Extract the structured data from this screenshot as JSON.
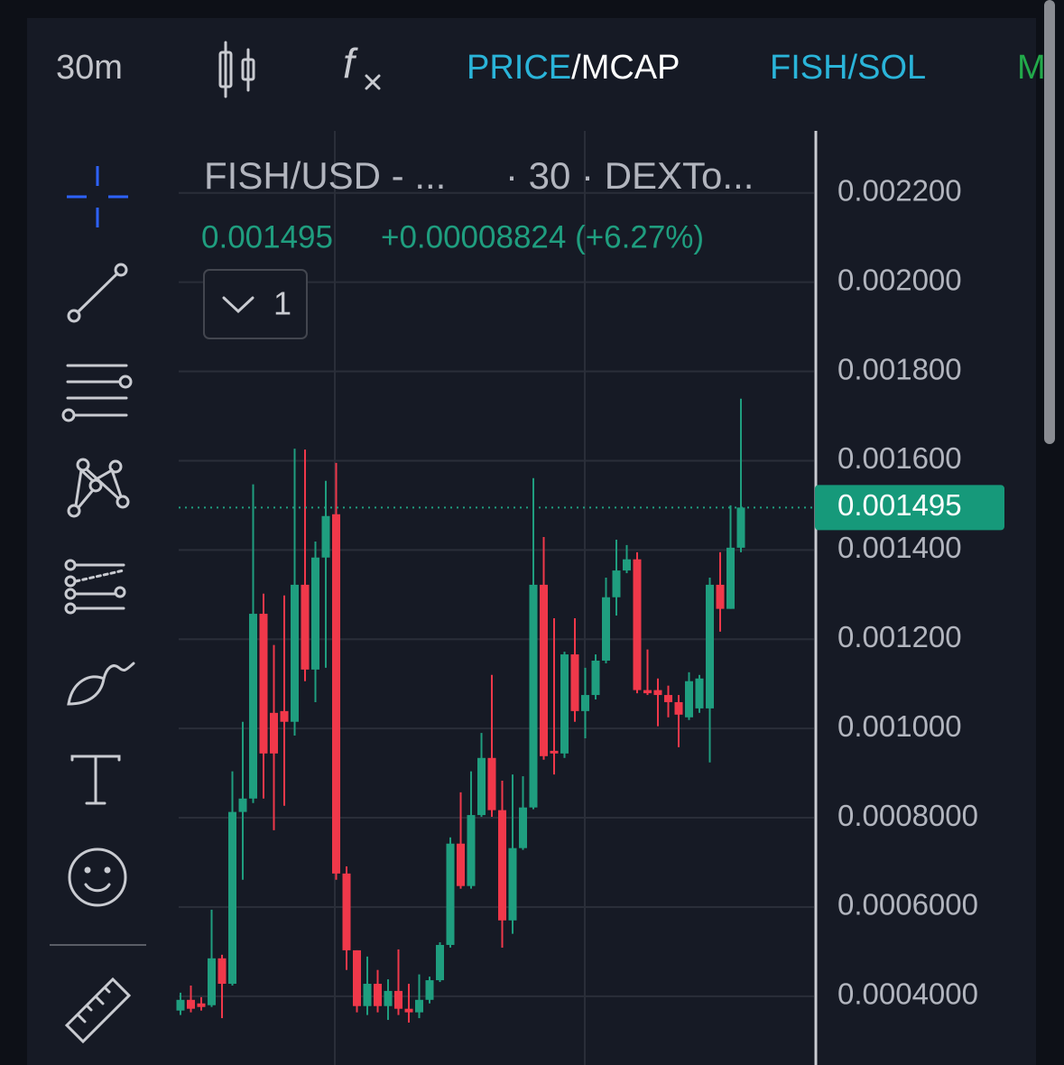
{
  "toolbar": {
    "interval": "30m",
    "price": "PRICE",
    "mcap": "/MCAP",
    "pair": "FISH/SOL",
    "more": "M"
  },
  "legend": {
    "symbol": "FISH/USD - ...",
    "details": "· 30 · DEXTo...",
    "change": "+0.00008824 (+6.27%)",
    "count": "1"
  },
  "chart_data": {
    "type": "candlestick",
    "up_color": "#1f9e7f",
    "down_color": "#f0384a",
    "grid": true,
    "open": [
      0.000368,
      0.000392,
      0.000384,
      0.00038,
      0.000485,
      0.000428,
      0.000813,
      0.000843,
      0.001257,
      0.001035,
      0.001039,
      0.001015,
      0.001322,
      0.001132,
      0.001383,
      0.00148,
      0.000675,
      0.000503,
      0.000378,
      0.000428,
      0.000378,
      0.000412,
      0.000372,
      0.000364,
      0.000392,
      0.000436,
      0.000515,
      0.000742,
      0.000647,
      0.000806,
      0.000934,
      0.000817,
      0.00057,
      0.000732,
      0.000823,
      0.001322,
      0.00095,
      0.000944,
      0.001166,
      0.001039,
      0.001075,
      0.001152,
      0.001294,
      0.001354,
      0.001379,
      0.001086,
      0.001086,
      0.001075,
      0.001059,
      0.001025,
      0.001045,
      0.001045,
      0.001322,
      0.001268,
      0.001405
    ],
    "high": [
      0.000408,
      0.000424,
      0.000398,
      0.000594,
      0.000493,
      0.000904,
      0.001015,
      0.001547,
      0.001302,
      0.001187,
      0.001298,
      0.001627,
      0.001625,
      0.001419,
      0.001555,
      0.001595,
      0.000691,
      0.000503,
      0.000489,
      0.000459,
      0.000438,
      0.000505,
      0.000428,
      0.000449,
      0.000444,
      0.000521,
      0.000756,
      0.000857,
      0.000904,
      0.00099,
      0.00112,
      0.000883,
      0.000897,
      0.000893,
      0.001561,
      0.001429,
      0.001247,
      0.001172,
      0.001247,
      0.001136,
      0.001166,
      0.001338,
      0.001423,
      0.001411,
      0.001395,
      0.001177,
      0.001112,
      0.001096,
      0.001075,
      0.001126,
      0.00112,
      0.001338,
      0.001395,
      0.0015,
      0.001739
    ],
    "low": [
      0.000358,
      0.000364,
      0.000368,
      0.000376,
      0.000351,
      0.000424,
      0.000661,
      0.000833,
      0.000843,
      0.000772,
      0.000827,
      0.000984,
      0.001106,
      0.001059,
      0.001136,
      0.000661,
      0.000459,
      0.000364,
      0.000358,
      0.000364,
      0.000347,
      0.000358,
      0.000341,
      0.000351,
      0.000384,
      0.000432,
      0.000509,
      0.000641,
      0.000641,
      0.000802,
      0.000802,
      0.000509,
      0.00054,
      0.000728,
      0.000819,
      0.00093,
      0.000897,
      0.000934,
      0.001015,
      0.000978,
      0.001065,
      0.001146,
      0.001253,
      0.001348,
      0.001079,
      0.001075,
      0.001005,
      0.001025,
      0.000958,
      0.001019,
      0.001035,
      0.000924,
      0.001217,
      0.001268,
      0.001395
    ],
    "close": [
      0.000392,
      0.000372,
      0.000376,
      0.000485,
      0.000428,
      0.000813,
      0.000843,
      0.001257,
      0.000944,
      0.000944,
      0.001015,
      0.001322,
      0.001132,
      0.001383,
      0.001476,
      0.000675,
      0.000503,
      0.000378,
      0.000428,
      0.000378,
      0.000412,
      0.000372,
      0.000364,
      0.000392,
      0.000436,
      0.000515,
      0.000742,
      0.000647,
      0.000806,
      0.000934,
      0.000817,
      0.00057,
      0.000732,
      0.000823,
      0.001322,
      0.000938,
      0.000944,
      0.001166,
      0.001039,
      0.001075,
      0.001152,
      0.001294,
      0.001354,
      0.001379,
      0.001086,
      0.001079,
      0.001075,
      0.001059,
      0.001031,
      0.001106,
      0.001112,
      0.001322,
      0.001268,
      0.001405,
      0.001495
    ],
    "ylim": [
      0.000246,
      0.002339
    ],
    "yticks": [
      {
        "value": 0.0004,
        "label": "0.0004000"
      },
      {
        "value": 0.0006,
        "label": "0.0006000"
      },
      {
        "value": 0.0008,
        "label": "0.0008000"
      },
      {
        "value": 0.001,
        "label": "0.001000"
      },
      {
        "value": 0.0012,
        "label": "0.001200"
      },
      {
        "value": 0.0014,
        "label": "0.001400"
      },
      {
        "value": 0.0016,
        "label": "0.001600"
      },
      {
        "value": 0.0018,
        "label": "0.001800"
      },
      {
        "value": 0.002,
        "label": "0.002000"
      },
      {
        "value": 0.0022,
        "label": "0.002200"
      }
    ]
  }
}
